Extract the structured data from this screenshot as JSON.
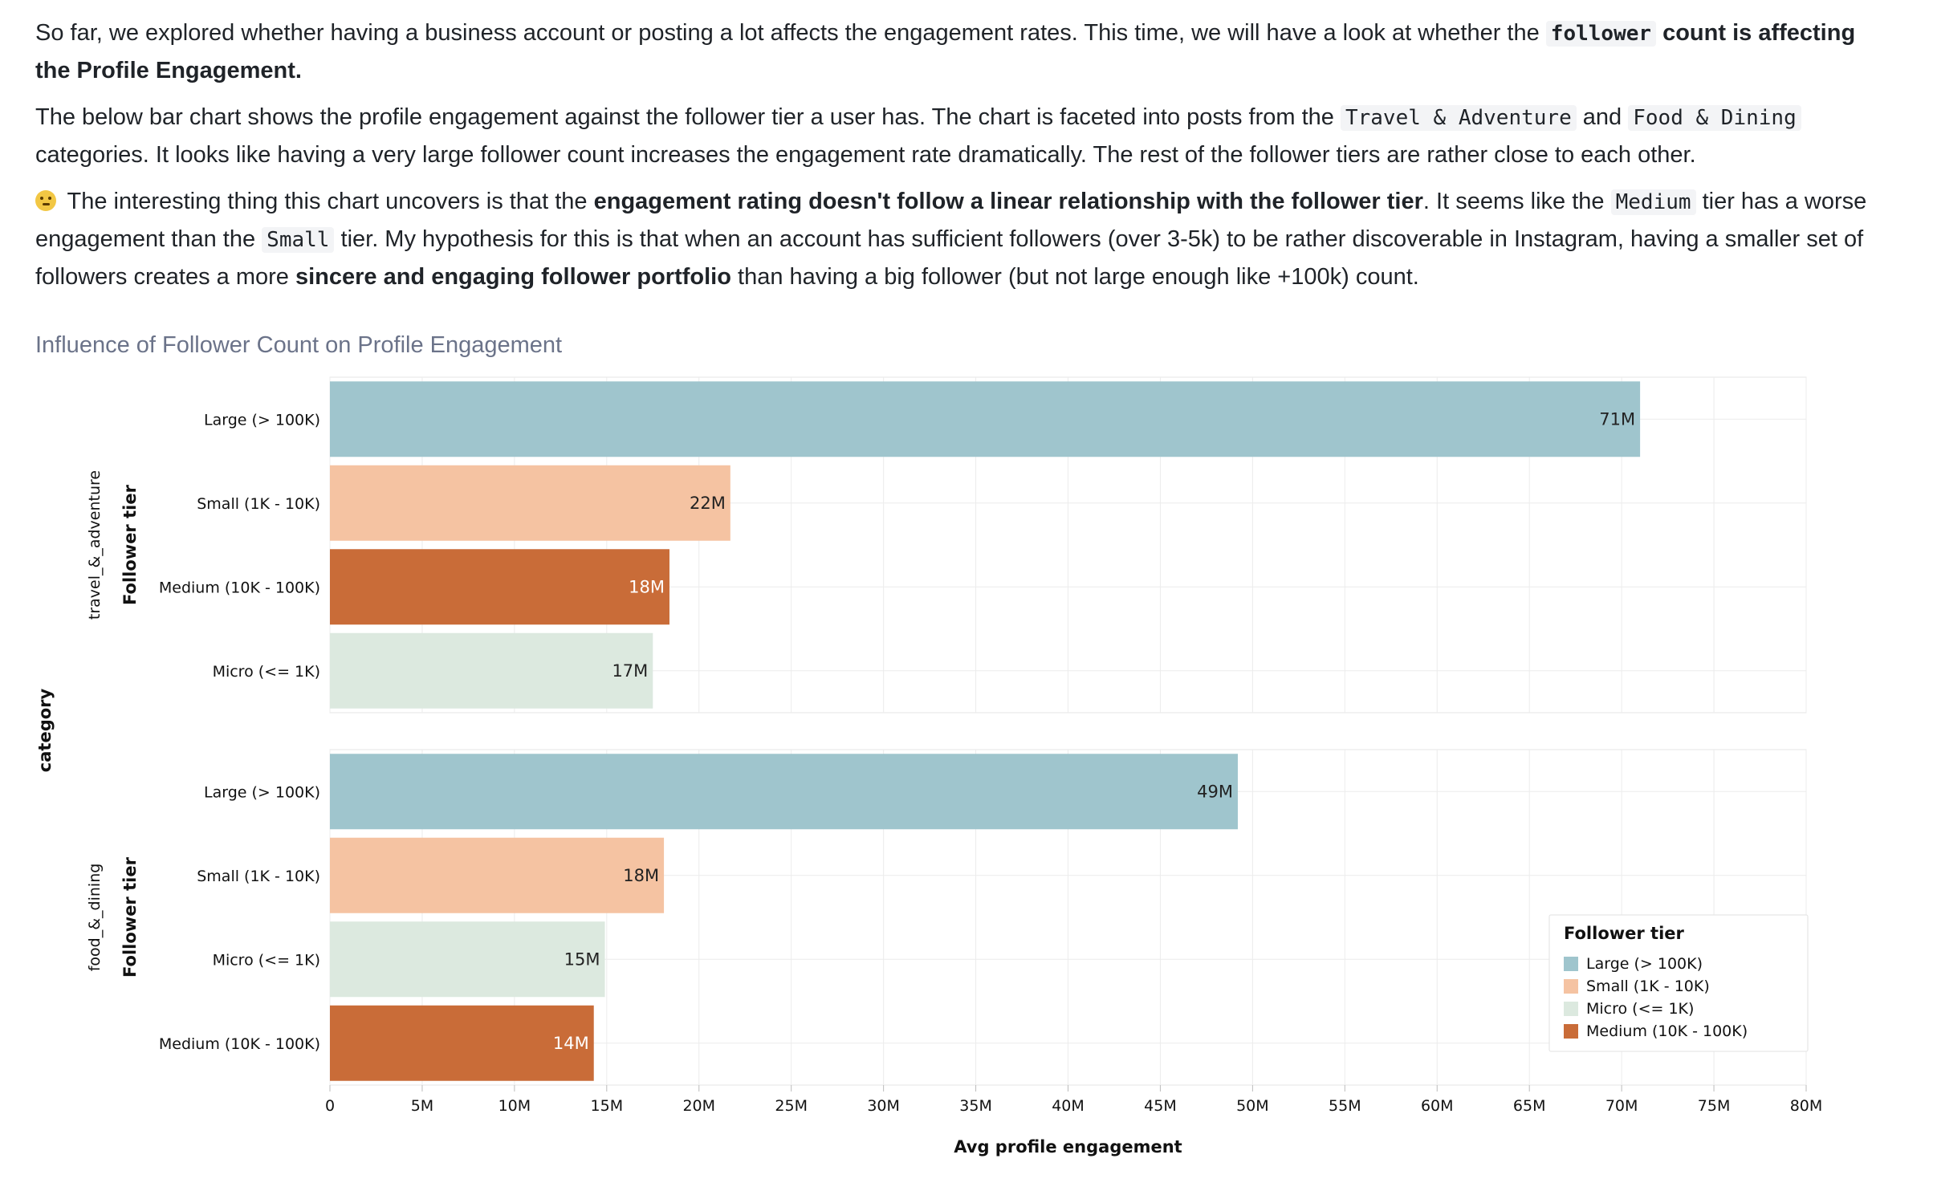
{
  "prose": {
    "p1_a": "So far, we explored whether having a business account or posting a lot affects the engagement rates. This time, we will have a look at whether the ",
    "p1_code": "follower",
    "p1_b": " count is affecting the Profile Engagement.",
    "p2_a": "The below bar chart shows the profile engagement against the follower tier a user has. The chart is faceted into posts from the ",
    "p2_code1": "Travel & Adventure",
    "p2_and": " and ",
    "p2_code2": "Food & Dining ",
    "p2_b": " categories. It looks like having a very large follower count increases the engagement rate dramatically. The rest of the follower tiers are rather close to each other.",
    "p3_emoji": "thinking-face-icon",
    "p3_a": " The interesting thing this chart uncovers is that the ",
    "p3_bold1": "engagement rating doesn't follow a linear relationship with the follower tier",
    "p3_b": ". It seems like the ",
    "p3_code1": "Medium",
    "p3_c": " tier has a worse engagement than the ",
    "p3_code2": "Small",
    "p3_d": " tier. My hypothesis for this is that when an account has sufficient followers (over 3-5k) to be rather discoverable in Instagram, having a smaller set of followers creates a more ",
    "p3_bold2": "sincere and engaging follower portfolio",
    "p3_e": " than having a big follower (but not large enough like +100k) count."
  },
  "chart_data": {
    "type": "bar",
    "orientation": "horizontal",
    "title": "Influence of Follower Count on Profile Engagement",
    "xlabel": "Avg profile engagement",
    "facet_axis_label": "category",
    "ylabel": "Follower tier",
    "xlim": [
      0,
      80000000
    ],
    "xticks": [
      "0",
      "5M",
      "10M",
      "15M",
      "20M",
      "25M",
      "30M",
      "35M",
      "40M",
      "45M",
      "50M",
      "55M",
      "60M",
      "65M",
      "70M",
      "75M",
      "80M"
    ],
    "grid": true,
    "legend_placement": "bottom-right",
    "legend_title": "Follower tier",
    "tiers": [
      {
        "name": "Large (> 100K)",
        "color": "#9fc5cd"
      },
      {
        "name": "Small (1K - 10K)",
        "color": "#f5c3a2"
      },
      {
        "name": "Micro (<= 1K)",
        "color": "#dce9df"
      },
      {
        "name": "Medium (10K - 100K)",
        "color": "#c96c38"
      }
    ],
    "facets": [
      {
        "name": "travel_&_adventure",
        "bars": [
          {
            "tier": "Large (> 100K)",
            "value": 71000000,
            "label": "71M"
          },
          {
            "tier": "Small (1K - 10K)",
            "value": 21700000,
            "label": "22M"
          },
          {
            "tier": "Medium (10K - 100K)",
            "value": 18400000,
            "label": "18M"
          },
          {
            "tier": "Micro (<= 1K)",
            "value": 17500000,
            "label": "17M"
          }
        ]
      },
      {
        "name": "food_&_dining",
        "bars": [
          {
            "tier": "Large (> 100K)",
            "value": 49200000,
            "label": "49M"
          },
          {
            "tier": "Small (1K - 10K)",
            "value": 18100000,
            "label": "18M"
          },
          {
            "tier": "Micro (<= 1K)",
            "value": 14900000,
            "label": "15M"
          },
          {
            "tier": "Medium (10K - 100K)",
            "value": 14300000,
            "label": "14M"
          }
        ]
      }
    ]
  }
}
